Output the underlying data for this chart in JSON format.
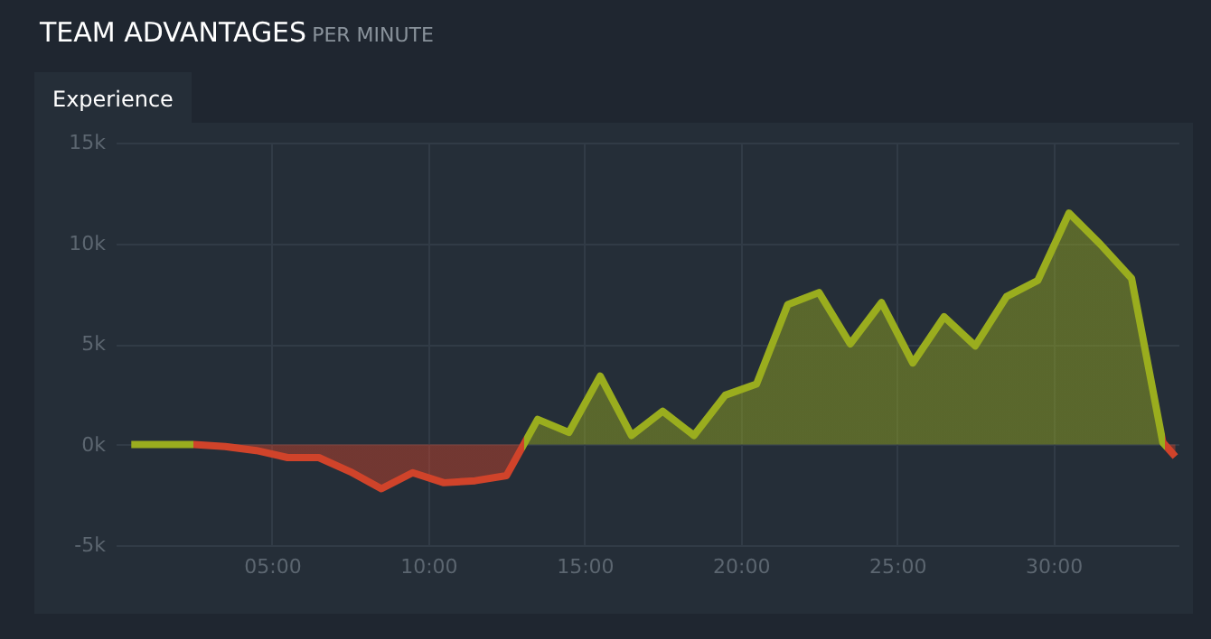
{
  "chart_data": {
    "type": "area",
    "title": "TEAM ADVANTAGES",
    "subtitle": "PER MINUTE",
    "annotations": [
      "Experience"
    ],
    "x": [
      0.5,
      1.5,
      2.5,
      3.5,
      4.5,
      5.5,
      6.5,
      7.5,
      8.5,
      9.5,
      10.5,
      11.5,
      12.5,
      13.5,
      14.5,
      15.5,
      16.5,
      17.5,
      18.5,
      19.5,
      20.5,
      21.5,
      22.5,
      23.5,
      24.5,
      25.5,
      26.5,
      27.5,
      28.5,
      29.5,
      30.5,
      31.5,
      32.5,
      33.5,
      33.9
    ],
    "series": [
      {
        "colors": [
          "#9aad1e",
          "#9aad1e",
          "#9aad1e",
          "#d0432a",
          "#d0432a",
          "#d0432a",
          "#d0432a",
          "#d0432a",
          "#d0432a",
          "#d0432a",
          "#d0432a",
          "#d0432a",
          "#d0432a",
          "#9aad1e",
          "#9aad1e",
          "#9aad1e",
          "#9aad1e",
          "#9aad1e",
          "#9aad1e",
          "#9aad1e",
          "#9aad1e",
          "#9aad1e",
          "#9aad1e",
          "#9aad1e",
          "#9aad1e",
          "#9aad1e",
          "#9aad1e",
          "#9aad1e",
          "#9aad1e",
          "#9aad1e",
          "#9aad1e",
          "#9aad1e",
          "#9aad1e",
          "#9aad1e",
          "#d0432a"
        ],
        "values": [
          0,
          0,
          0,
          -100,
          -300,
          -650,
          -650,
          -1350,
          -2200,
          -1400,
          -1900,
          -1800,
          -1550,
          1250,
          600,
          3400,
          450,
          1650,
          450,
          2450,
          3000,
          6950,
          7550,
          5000,
          7050,
          4050,
          6350,
          4900,
          7350,
          8150,
          11500,
          9950,
          8250,
          100,
          -600
        ]
      }
    ],
    "xlim": [
      0,
      34
    ],
    "xticks": [
      {
        "value": 5,
        "label": "05:00"
      },
      {
        "value": 10,
        "label": "10:00"
      },
      {
        "value": 15,
        "label": "15:00"
      },
      {
        "value": 20,
        "label": "20:00"
      },
      {
        "value": 25,
        "label": "25:00"
      },
      {
        "value": 30,
        "label": "30:00"
      }
    ],
    "ylim": [
      -5000,
      15000
    ],
    "yticks": [
      {
        "value": -5000,
        "label": "-5k"
      },
      {
        "value": 0,
        "label": "0k"
      },
      {
        "value": 5000,
        "label": "5k"
      },
      {
        "value": 10000,
        "label": "10k"
      },
      {
        "value": 15000,
        "label": "15k"
      }
    ],
    "grid": true,
    "line_style": "solid",
    "marker": "none"
  }
}
